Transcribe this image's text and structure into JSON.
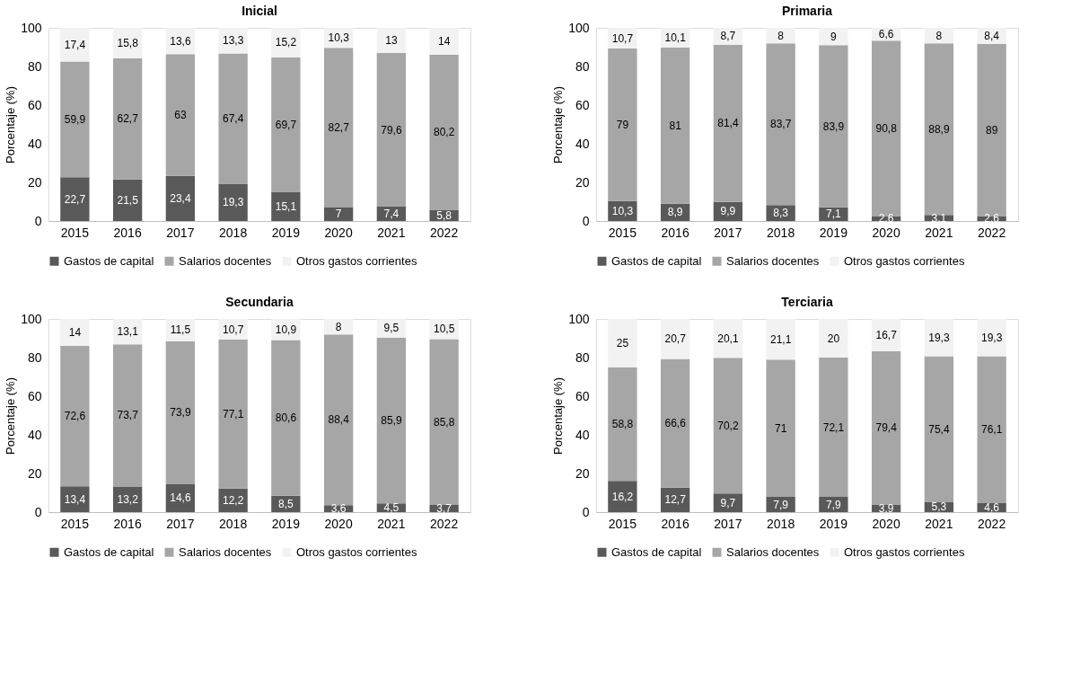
{
  "chart_data": [
    {
      "type": "bar",
      "title": "Inicial",
      "ylabel": "Porcentaje (%)",
      "stacked": true,
      "legend": "bottom",
      "grid": false,
      "ylim": [
        0,
        100
      ],
      "yticks": [
        0,
        20,
        40,
        60,
        80,
        100
      ],
      "categories": [
        "2015",
        "2016",
        "2017",
        "2018",
        "2019",
        "2020",
        "2021",
        "2022"
      ],
      "series": [
        {
          "name": "Gastos de capital",
          "color": "#595959",
          "values": [
            22.7,
            21.5,
            23.4,
            19.3,
            15.1,
            7,
            7.4,
            5.8
          ],
          "value_labels": [
            "22,7",
            "21,5",
            "23,4",
            "19,3",
            "15,1",
            "7",
            "7,4",
            "5,8"
          ]
        },
        {
          "name": "Salarios docentes",
          "color": "#a6a6a6",
          "values": [
            59.9,
            62.7,
            63,
            67.4,
            69.7,
            82.7,
            79.6,
            80.2
          ],
          "value_labels": [
            "59,9",
            "62,7",
            "63",
            "67,4",
            "69,7",
            "82,7",
            "79,6",
            "80,2"
          ]
        },
        {
          "name": "Otros gastos corrientes",
          "color": "#f2f2f2",
          "values": [
            17.4,
            15.8,
            13.6,
            13.3,
            15.2,
            10.3,
            13,
            14
          ],
          "value_labels": [
            "17,4",
            "15,8",
            "13,6",
            "13,3",
            "15,2",
            "10,3",
            "13",
            "14"
          ]
        }
      ]
    },
    {
      "type": "bar",
      "title": "Primaria",
      "ylabel": "Porcentaje (%)",
      "stacked": true,
      "legend": "bottom",
      "grid": false,
      "ylim": [
        0,
        100
      ],
      "yticks": [
        0,
        20,
        40,
        60,
        80,
        100
      ],
      "categories": [
        "2015",
        "2016",
        "2017",
        "2018",
        "2019",
        "2020",
        "2021",
        "2022"
      ],
      "series": [
        {
          "name": "Gastos de capital",
          "color": "#595959",
          "values": [
            10.3,
            8.9,
            9.9,
            8.3,
            7.1,
            2.6,
            3.1,
            2.6
          ],
          "value_labels": [
            "10,3",
            "8,9",
            "9,9",
            "8,3",
            "7,1",
            "2,6",
            "3,1",
            "2,6"
          ]
        },
        {
          "name": "Salarios docentes",
          "color": "#a6a6a6",
          "values": [
            79,
            81,
            81.4,
            83.7,
            83.9,
            90.8,
            88.9,
            89
          ],
          "value_labels": [
            "79",
            "81",
            "81,4",
            "83,7",
            "83,9",
            "90,8",
            "88,9",
            "89"
          ]
        },
        {
          "name": "Otros gastos corrientes",
          "color": "#f2f2f2",
          "values": [
            10.7,
            10.1,
            8.7,
            8,
            9,
            6.6,
            8,
            8.4
          ],
          "value_labels": [
            "10,7",
            "10,1",
            "8,7",
            "8",
            "9",
            "6,6",
            "8",
            "8,4"
          ]
        }
      ]
    },
    {
      "type": "bar",
      "title": "Secundaria",
      "ylabel": "Porcentaje (%)",
      "stacked": true,
      "legend": "bottom",
      "grid": false,
      "ylim": [
        0,
        100
      ],
      "yticks": [
        0,
        20,
        40,
        60,
        80,
        100
      ],
      "categories": [
        "2015",
        "2016",
        "2017",
        "2018",
        "2019",
        "2020",
        "2021",
        "2022"
      ],
      "series": [
        {
          "name": "Gastos de capital",
          "color": "#595959",
          "values": [
            13.4,
            13.2,
            14.6,
            12.2,
            8.5,
            3.6,
            4.5,
            3.7
          ],
          "value_labels": [
            "13,4",
            "13,2",
            "14,6",
            "12,2",
            "8,5",
            "3,6",
            "4,5",
            "3,7"
          ]
        },
        {
          "name": "Salarios docentes",
          "color": "#a6a6a6",
          "values": [
            72.6,
            73.7,
            73.9,
            77.1,
            80.6,
            88.4,
            85.9,
            85.8
          ],
          "value_labels": [
            "72,6",
            "73,7",
            "73,9",
            "77,1",
            "80,6",
            "88,4",
            "85,9",
            "85,8"
          ]
        },
        {
          "name": "Otros gastos corrientes",
          "color": "#f2f2f2",
          "values": [
            14,
            13.1,
            11.5,
            10.7,
            10.9,
            8,
            9.5,
            10.5
          ],
          "value_labels": [
            "14",
            "13,1",
            "11,5",
            "10,7",
            "10,9",
            "8",
            "9,5",
            "10,5"
          ]
        }
      ]
    },
    {
      "type": "bar",
      "title": "Terciaria",
      "ylabel": "Porcentaje (%)",
      "stacked": true,
      "legend": "bottom",
      "grid": false,
      "ylim": [
        0,
        100
      ],
      "yticks": [
        0,
        20,
        40,
        60,
        80,
        100
      ],
      "categories": [
        "2015",
        "2016",
        "2017",
        "2018",
        "2019",
        "2020",
        "2021",
        "2022"
      ],
      "series": [
        {
          "name": "Gastos de capital",
          "color": "#595959",
          "values": [
            16.2,
            12.7,
            9.7,
            7.9,
            7.9,
            3.9,
            5.3,
            4.6
          ],
          "value_labels": [
            "16,2",
            "12,7",
            "9,7",
            "7,9",
            "7,9",
            "3,9",
            "5,3",
            "4,6"
          ]
        },
        {
          "name": "Salarios docentes",
          "color": "#a6a6a6",
          "values": [
            58.8,
            66.6,
            70.2,
            71,
            72.1,
            79.4,
            75.4,
            76.1
          ],
          "value_labels": [
            "58,8",
            "66,6",
            "70,2",
            "71",
            "72,1",
            "79,4",
            "75,4",
            "76,1"
          ]
        },
        {
          "name": "Otros gastos corrientes",
          "color": "#f2f2f2",
          "values": [
            25,
            20.7,
            20.1,
            21.1,
            20,
            16.7,
            19.3,
            19.3
          ],
          "value_labels": [
            "25",
            "20,7",
            "20,1",
            "21,1",
            "20",
            "16,7",
            "19,3",
            "19,3"
          ]
        }
      ]
    }
  ]
}
